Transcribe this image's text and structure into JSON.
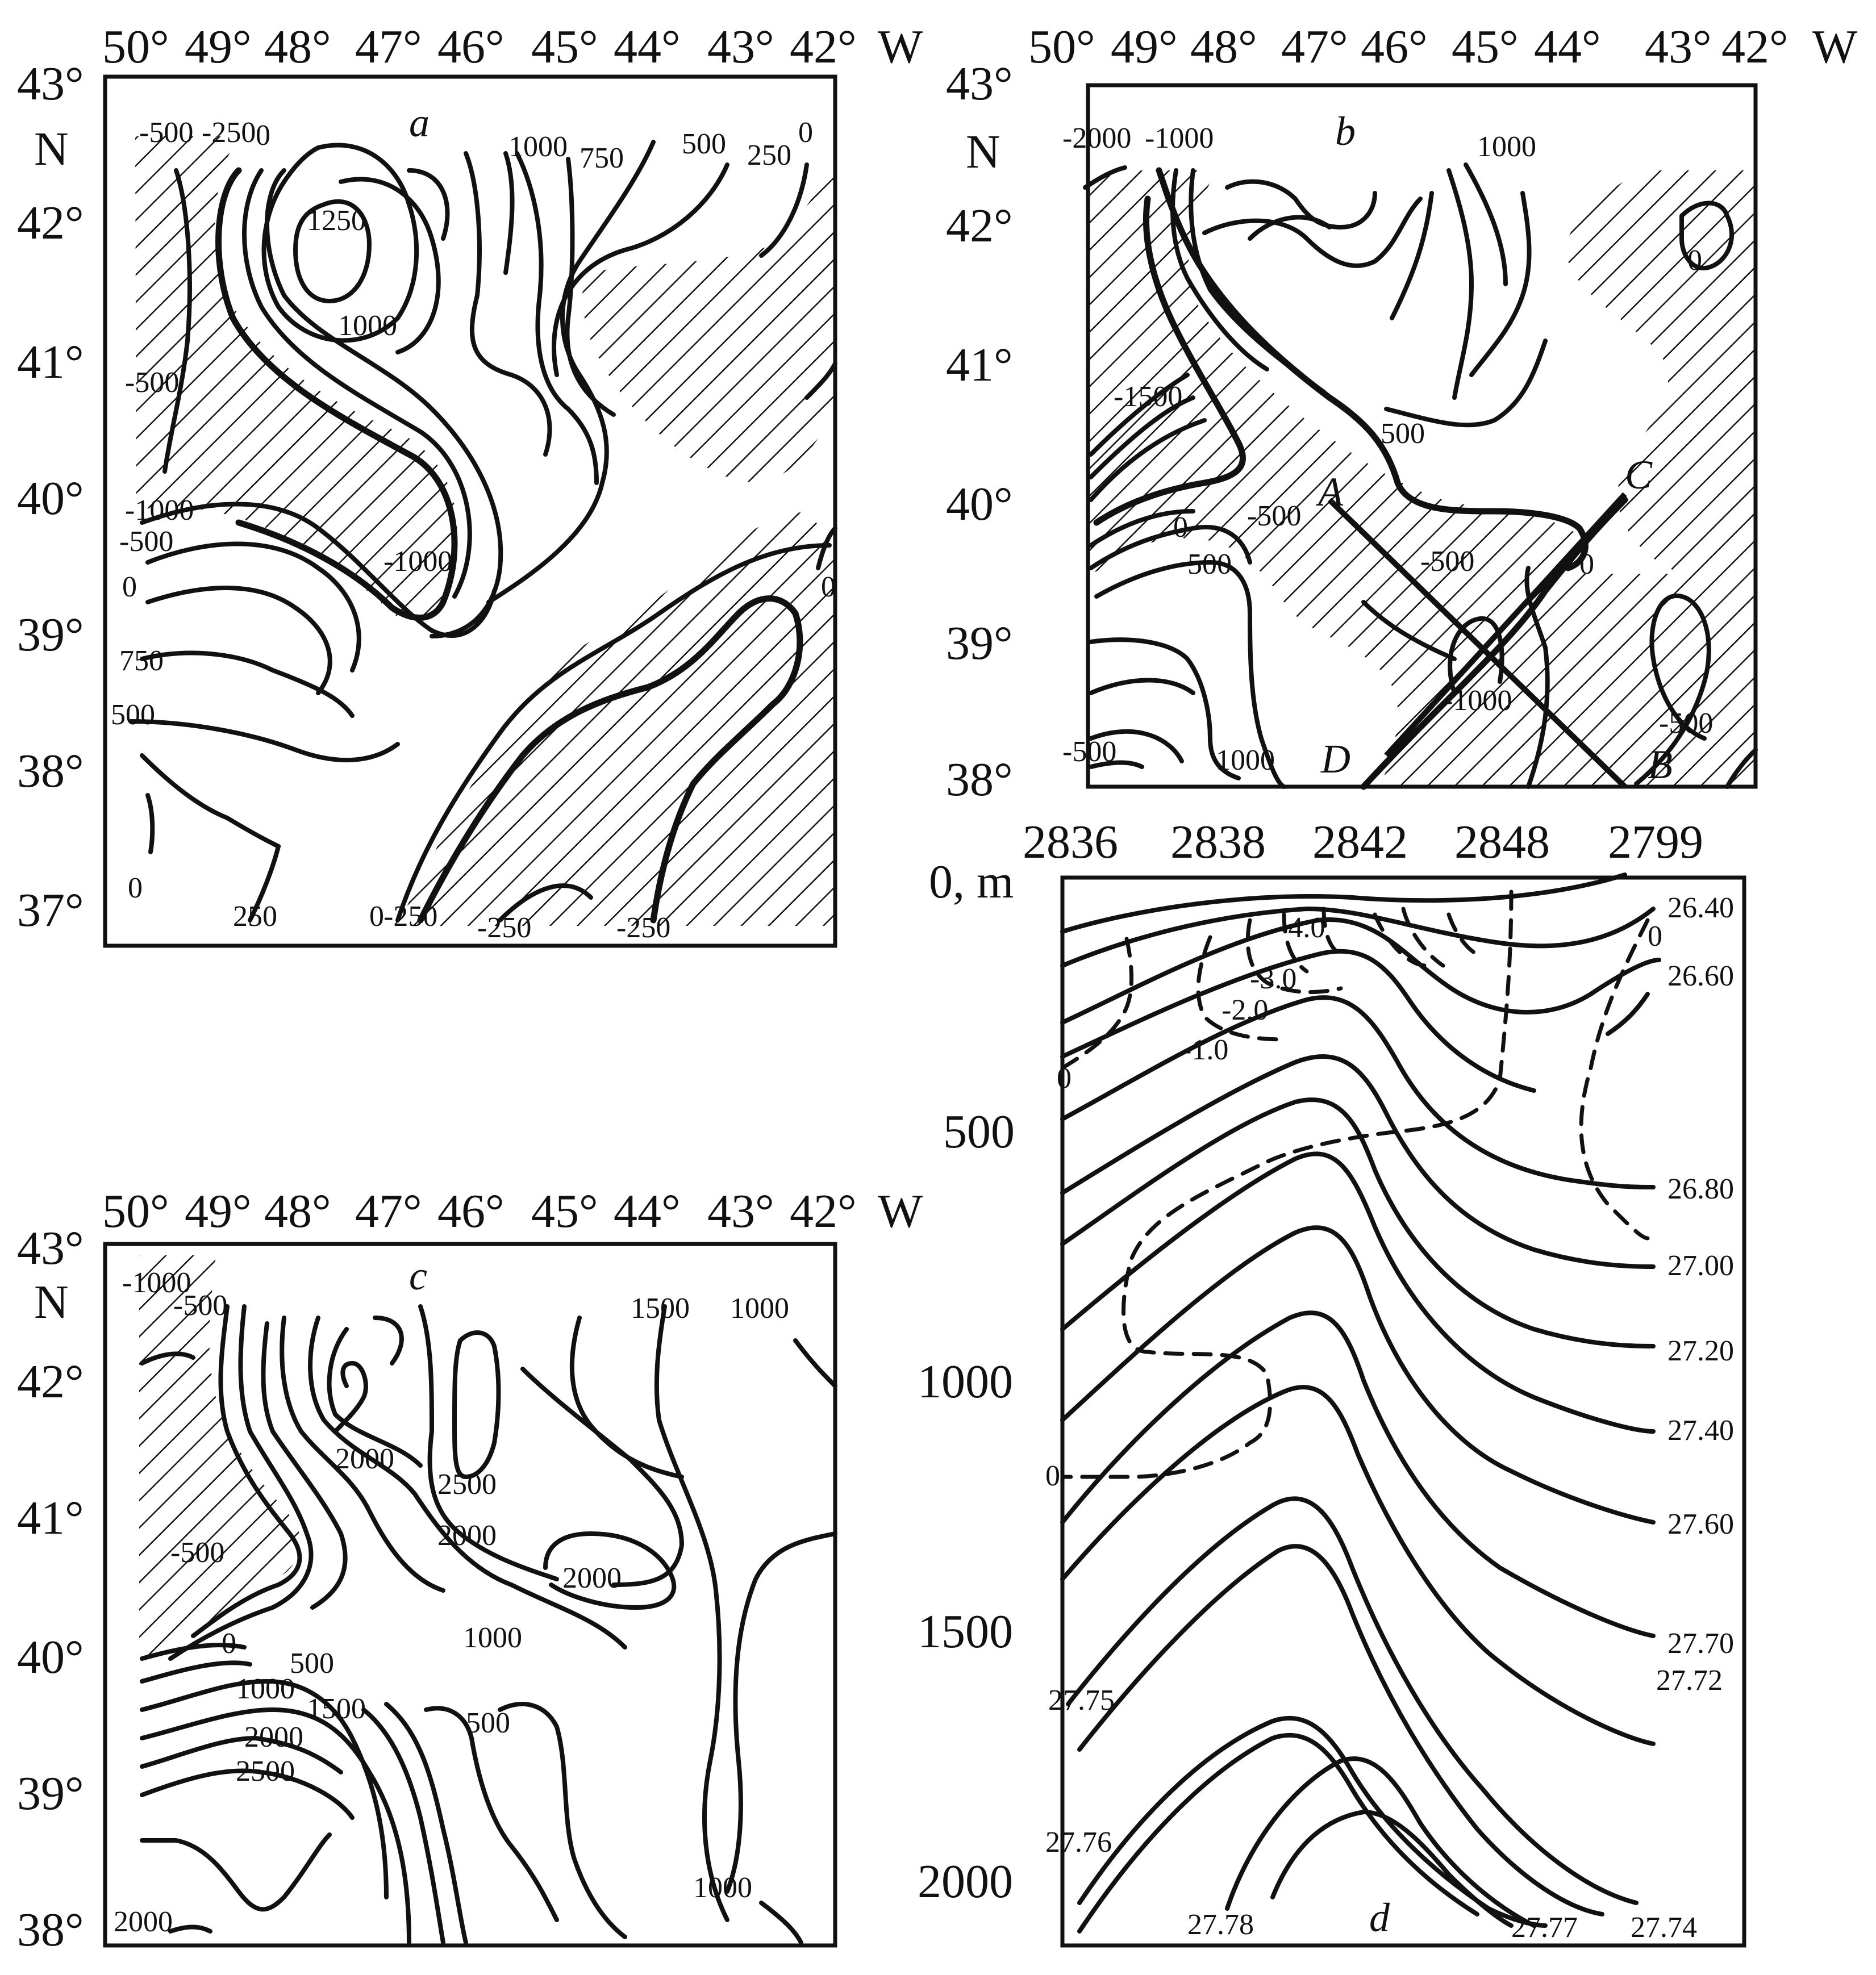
{
  "panels": {
    "a": {
      "letter": "a",
      "lon_ticks": [
        "50°",
        "49°",
        "48°",
        "47°",
        "46°",
        "45°",
        "44°",
        "43°",
        "42°"
      ],
      "lon_unit": "W",
      "lat_ticks": [
        "43°",
        "42°",
        "41°",
        "40°",
        "39°",
        "38°",
        "37°"
      ],
      "lat_unit": "N",
      "contour_labels": [
        "-500",
        "-250",
        "0",
        "1000",
        "750",
        "500",
        "250",
        "0",
        "1250",
        "1000",
        "-500",
        "-1000",
        "-500",
        "0",
        "-1000",
        "750",
        "500",
        "0",
        "250",
        "0",
        "-250",
        "-250",
        "-250",
        "0"
      ]
    },
    "b": {
      "letter": "b",
      "lon_ticks": [
        "50°",
        "49°",
        "48°",
        "47°",
        "46°",
        "45°",
        "44°",
        "43°",
        "42°"
      ],
      "lon_unit": "W",
      "lat_ticks": [
        "43°",
        "42°",
        "41°",
        "40°",
        "39°",
        "38°"
      ],
      "lat_unit": "N",
      "contour_labels": [
        "-2000",
        "-1000",
        "1000",
        "0",
        "-1500",
        "500",
        "0",
        "-500",
        "500",
        "-500",
        "0",
        "-1000",
        "-500",
        "-500",
        "1000"
      ],
      "section_letters": [
        "A",
        "B",
        "C",
        "D"
      ]
    },
    "c": {
      "letter": "c",
      "lon_ticks": [
        "50°",
        "49°",
        "48°",
        "47°",
        "46°",
        "45°",
        "44°",
        "43°",
        "42°"
      ],
      "lon_unit": "W",
      "lat_ticks": [
        "43°",
        "42°",
        "41°",
        "40°",
        "39°",
        "38°"
      ],
      "lat_unit": "N",
      "contour_labels": [
        "-1000",
        "-500",
        "1500",
        "1000",
        "2000",
        "2500",
        "2000",
        "2000",
        "-500",
        "1000",
        "500",
        "0",
        "1000",
        "1500",
        "500",
        "2000",
        "2500",
        "2000",
        "1000"
      ]
    },
    "d": {
      "letter": "d",
      "stations": [
        "2836",
        "2838",
        "2842",
        "2848",
        "2799"
      ],
      "depth_ticks": [
        "0, m",
        "500",
        "1000",
        "1500",
        "2000"
      ],
      "density_labels": [
        "26.40",
        "26.60",
        "26.80",
        "27.00",
        "27.20",
        "27.40",
        "27.60",
        "27.70",
        "27.72",
        "27.75",
        "27.76",
        "27.78",
        "27.77",
        "27.74"
      ],
      "dashed_labels": [
        "0",
        "-1.0",
        "-2.0",
        "-3.0",
        "-4.0",
        "0",
        "0"
      ]
    }
  }
}
